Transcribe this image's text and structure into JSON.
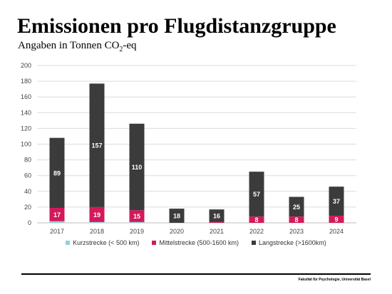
{
  "header": {
    "title": "Emissionen pro Flugdistanzgruppe",
    "subtitle_main": "Angaben in Tonnen CO",
    "subtitle_sub": "2",
    "subtitle_tail": "-eq"
  },
  "footer": {
    "text": "Fakultät für Psychologie, Universität Basel"
  },
  "chart_data": {
    "type": "bar",
    "stacked": true,
    "categories": [
      "2017",
      "2018",
      "2019",
      "2020",
      "2021",
      "2022",
      "2023",
      "2024"
    ],
    "ylim": [
      0,
      200
    ],
    "yticks": [
      "0",
      "20",
      "40",
      "60",
      "80",
      "100",
      "120",
      "140",
      "160",
      "180",
      "200"
    ],
    "grid": true,
    "legend_position": "bottom",
    "series": [
      {
        "name": "Kurzstrecke (< 500 km)",
        "color": "#8fd4d9",
        "values": [
          2,
          1,
          1,
          0,
          0,
          0,
          0,
          0
        ],
        "labels": [
          "",
          "",
          "",
          "",
          "",
          "",
          "",
          ""
        ]
      },
      {
        "name": "Mittelstrecke (500-1600 km)",
        "color": "#d3195a",
        "values": [
          17,
          19,
          15,
          0,
          1,
          8,
          8,
          9
        ],
        "labels": [
          "17",
          "19",
          "15",
          "",
          "",
          "8",
          "8",
          "9"
        ]
      },
      {
        "name": "Langstrecke (>1600km)",
        "color": "#3b3b3b",
        "values": [
          89,
          157,
          110,
          18,
          16,
          57,
          25,
          37
        ],
        "labels": [
          "89",
          "157",
          "110",
          "18",
          "16",
          "57",
          "25",
          "37"
        ]
      }
    ]
  }
}
